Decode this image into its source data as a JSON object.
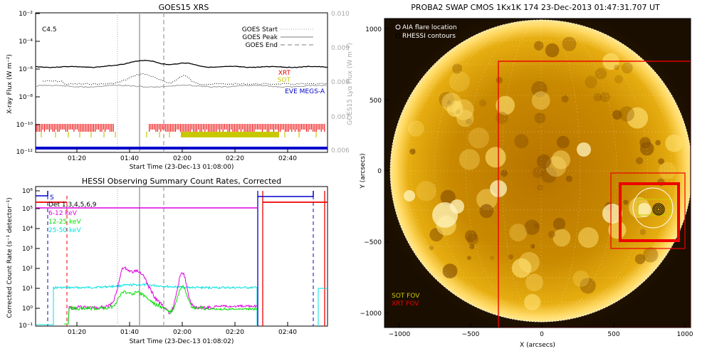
{
  "chart_data": [
    {
      "type": "line",
      "title": "GOES15 XRS",
      "xlabel": "Start Time (23-Dec-13 01:08:00)",
      "ylabel": "X-ray Flux (W m⁻²)",
      "ylabel_right": "GOES15 Lyα Flux (W m⁻²)",
      "flare_class": "C4.5",
      "y_log": true,
      "yticks": [
        "10⁻²",
        "10⁻⁴",
        "10⁻⁶",
        "10⁻⁸",
        "10⁻¹⁰",
        "10⁻¹²"
      ],
      "yticks_right": [
        "0.010",
        "0.009",
        "0.008",
        "0.007",
        "0.006"
      ],
      "xticks": [
        "01:20",
        "01:40",
        "02:00",
        "02:20",
        "02:40"
      ],
      "markers": [
        {
          "label": "GOES Start",
          "style": "dotted",
          "color": "#a8a8a8"
        },
        {
          "label": "GOES Peak",
          "style": "solid",
          "color": "#a8a8a8"
        },
        {
          "label": "GOES End",
          "style": "dashed",
          "color": "#a8a8a8"
        }
      ],
      "instruments": [
        {
          "label": "XRT",
          "color": "#ee0000"
        },
        {
          "label": "SOT",
          "color": "#c8c800"
        },
        {
          "label": "EVE MEGS-A",
          "color": "#0000cc"
        }
      ]
    },
    {
      "type": "line",
      "title": "HESSI Observing Summary Count Rates, Corrected",
      "xlabel": "Start Time (23-Dec-13 01:08:02)",
      "ylabel": "Corrected Count Rate (s⁻¹ detector⁻¹)",
      "y_log": true,
      "yticks": [
        "10⁶",
        "10⁵",
        "10⁴",
        "10³",
        "10²",
        "10¹",
        "10⁰",
        "10⁻¹"
      ],
      "xticks": [
        "01:20",
        "01:40",
        "02:00",
        "02:20",
        "02:40"
      ],
      "flags": [
        {
          "label": "S",
          "color": "#0000cc"
        },
        {
          "label": "Det 1,3,4,5,6,9",
          "color": "#000000"
        }
      ],
      "series": [
        {
          "name": "6-12 keV",
          "color": "#e000e0"
        },
        {
          "name": "12-25 keV",
          "color": "#00e000"
        },
        {
          "name": "25-50 keV",
          "color": "#00e0e0"
        }
      ]
    },
    {
      "type": "image",
      "title": "PROBA2 SWAP CMOS 1Kx1K 174 23-Dec-2013 01:47:31.707 UT",
      "xlabel": "X (arcsecs)",
      "ylabel": "Y (arcsecs)",
      "xticks": [
        "−1000",
        "−500",
        "0",
        "500",
        "1000"
      ],
      "yticks": [
        "1000",
        "500",
        "0",
        "−500",
        "−1000"
      ],
      "legend": [
        {
          "label": "AIA flare location",
          "color": "#ffffff"
        },
        {
          "label": "RHESSI contours",
          "color": "#000000"
        }
      ],
      "fov_labels": [
        {
          "label": "SOT FOV",
          "color": "#c8c800"
        },
        {
          "label": "XRT FOV",
          "color": "#ee0000"
        }
      ]
    }
  ]
}
